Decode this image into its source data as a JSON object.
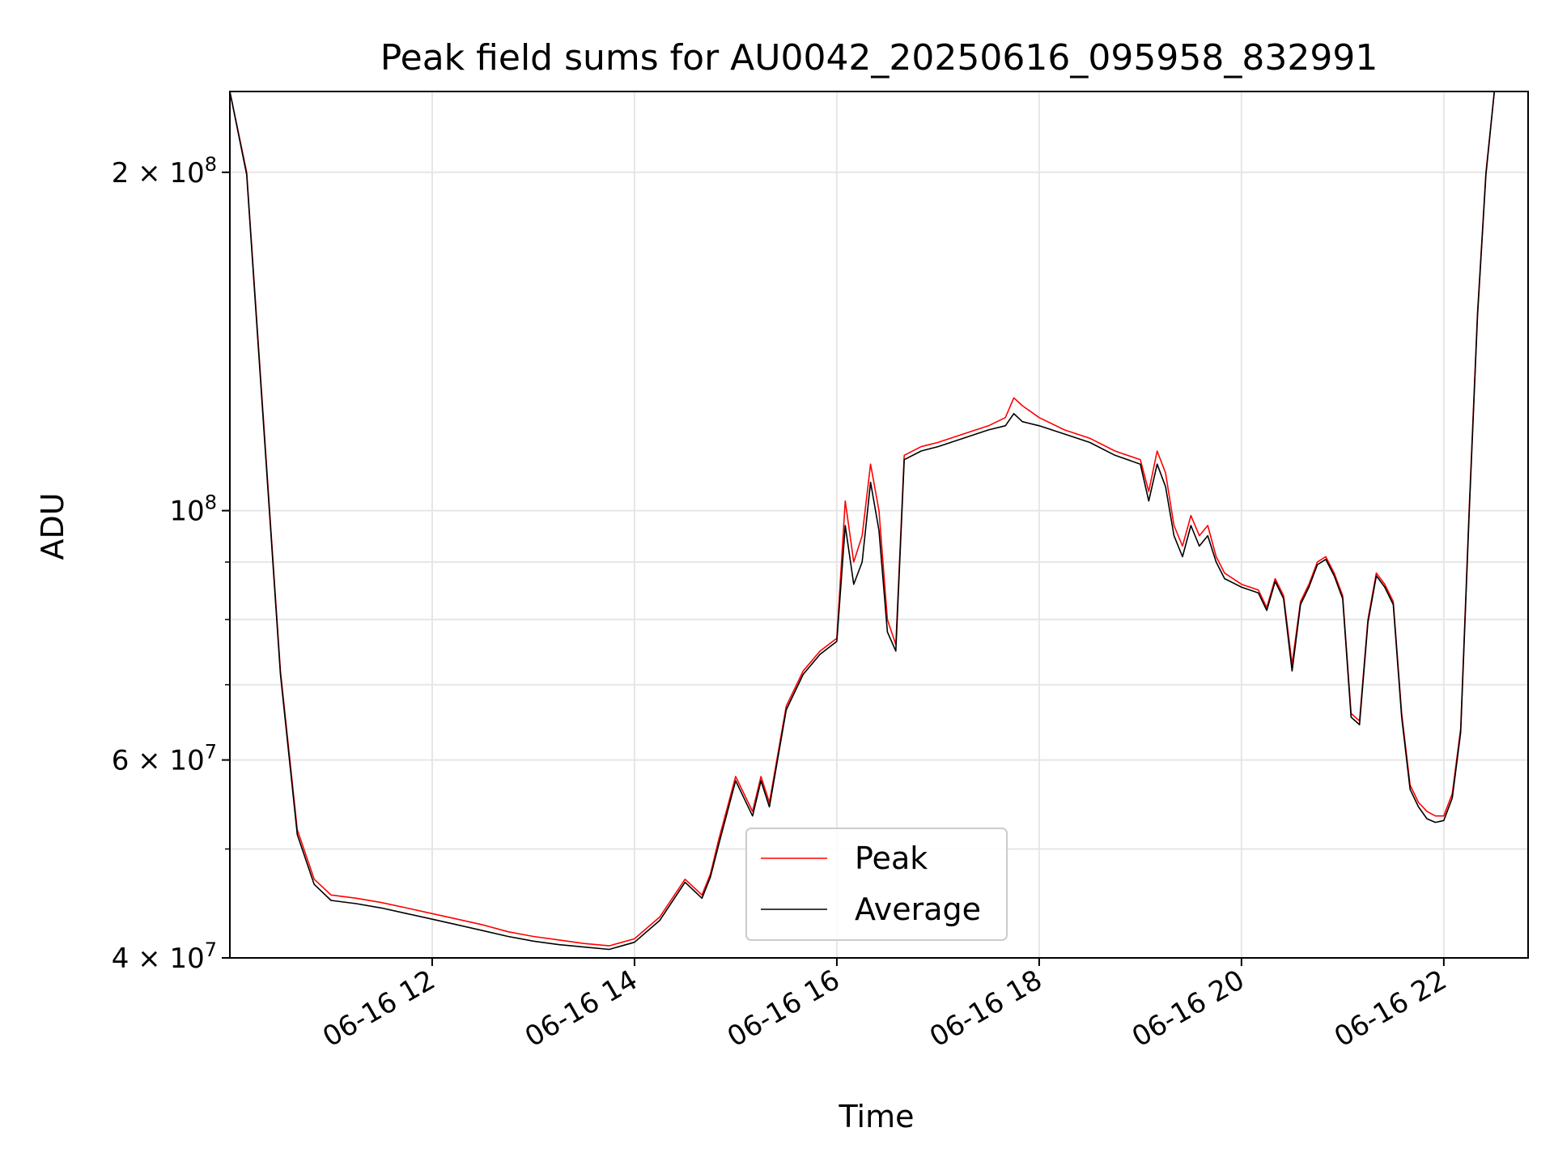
{
  "chart_data": {
    "type": "line",
    "title": "Peak field sums for AU0042_20250616_095958_832991",
    "xlabel": "Time",
    "ylabel": "ADU",
    "yscale": "log",
    "ylim": [
      40000000,
      236000000
    ],
    "xlim": [
      "2025-06-16 10:00",
      "2025-06-16 22:50"
    ],
    "grid": true,
    "legend_position": "lower center",
    "x_ticks": [
      "06-16 12",
      "06-16 14",
      "06-16 16",
      "06-16 18",
      "06-16 20",
      "06-16 22"
    ],
    "y_tick_labels": {
      "2e8": "2 × 10^8",
      "1e8": "10^8",
      "6e7": "6 × 10^7",
      "4e7": "4 × 10^7"
    },
    "colors": {
      "Peak": "#ff0000",
      "Average": "#000000"
    },
    "x": [
      "2025-06-16 10:00",
      "2025-06-16 10:10",
      "2025-06-16 10:20",
      "2025-06-16 10:30",
      "2025-06-16 10:40",
      "2025-06-16 10:50",
      "2025-06-16 11:00",
      "2025-06-16 11:15",
      "2025-06-16 11:30",
      "2025-06-16 11:45",
      "2025-06-16 12:00",
      "2025-06-16 12:15",
      "2025-06-16 12:30",
      "2025-06-16 12:45",
      "2025-06-16 13:00",
      "2025-06-16 13:15",
      "2025-06-16 13:30",
      "2025-06-16 13:45",
      "2025-06-16 14:00",
      "2025-06-16 14:15",
      "2025-06-16 14:30",
      "2025-06-16 14:40",
      "2025-06-16 14:45",
      "2025-06-16 14:50",
      "2025-06-16 15:00",
      "2025-06-16 15:10",
      "2025-06-16 15:15",
      "2025-06-16 15:20",
      "2025-06-16 15:30",
      "2025-06-16 15:40",
      "2025-06-16 15:50",
      "2025-06-16 16:00",
      "2025-06-16 16:05",
      "2025-06-16 16:10",
      "2025-06-16 16:15",
      "2025-06-16 16:20",
      "2025-06-16 16:25",
      "2025-06-16 16:30",
      "2025-06-16 16:35",
      "2025-06-16 16:40",
      "2025-06-16 16:50",
      "2025-06-16 17:00",
      "2025-06-16 17:15",
      "2025-06-16 17:30",
      "2025-06-16 17:40",
      "2025-06-16 17:45",
      "2025-06-16 17:50",
      "2025-06-16 18:00",
      "2025-06-16 18:15",
      "2025-06-16 18:30",
      "2025-06-16 18:45",
      "2025-06-16 19:00",
      "2025-06-16 19:05",
      "2025-06-16 19:10",
      "2025-06-16 19:15",
      "2025-06-16 19:20",
      "2025-06-16 19:25",
      "2025-06-16 19:30",
      "2025-06-16 19:35",
      "2025-06-16 19:40",
      "2025-06-16 19:45",
      "2025-06-16 19:50",
      "2025-06-16 20:00",
      "2025-06-16 20:10",
      "2025-06-16 20:15",
      "2025-06-16 20:20",
      "2025-06-16 20:25",
      "2025-06-16 20:30",
      "2025-06-16 20:35",
      "2025-06-16 20:40",
      "2025-06-16 20:45",
      "2025-06-16 20:50",
      "2025-06-16 20:55",
      "2025-06-16 21:00",
      "2025-06-16 21:05",
      "2025-06-16 21:10",
      "2025-06-16 21:15",
      "2025-06-16 21:20",
      "2025-06-16 21:25",
      "2025-06-16 21:30",
      "2025-06-16 21:35",
      "2025-06-16 21:40",
      "2025-06-16 21:45",
      "2025-06-16 21:50",
      "2025-06-16 21:55",
      "2025-06-16 22:00",
      "2025-06-16 22:05",
      "2025-06-16 22:10",
      "2025-06-16 22:15",
      "2025-06-16 22:20",
      "2025-06-16 22:25",
      "2025-06-16 22:30",
      "2025-06-16 22:35",
      "2025-06-16 22:40",
      "2025-06-16 22:50"
    ],
    "series": [
      {
        "name": "Peak",
        "values": [
          236000000,
          200000000,
          120000000,
          72000000,
          52000000,
          47000000,
          45500000,
          45200000,
          44800000,
          44300000,
          43800000,
          43300000,
          42800000,
          42200000,
          41800000,
          41500000,
          41200000,
          41000000,
          41600000,
          43500000,
          47000000,
          45500000,
          47500000,
          51000000,
          58000000,
          54000000,
          58000000,
          55000000,
          67000000,
          72000000,
          75000000,
          77000000,
          102000000,
          90000000,
          95000000,
          110000000,
          100000000,
          80000000,
          76000000,
          112000000,
          114000000,
          115000000,
          117000000,
          119000000,
          121000000,
          126000000,
          124000000,
          121000000,
          118000000,
          116000000,
          113000000,
          111000000,
          104000000,
          113000000,
          108000000,
          97000000,
          93000000,
          99000000,
          95000000,
          97000000,
          91000000,
          88000000,
          86000000,
          85000000,
          82000000,
          87000000,
          84000000,
          73000000,
          83000000,
          86000000,
          90000000,
          91000000,
          88000000,
          84000000,
          66000000,
          65000000,
          80000000,
          88000000,
          86000000,
          83000000,
          66000000,
          57000000,
          55000000,
          54000000,
          53500000,
          53500000,
          56000000,
          64000000,
          100000000,
          150000000,
          200000000,
          236000000,
          236000000,
          236000000,
          236000000
        ]
      },
      {
        "name": "Average",
        "values": [
          236000000,
          199000000,
          119000000,
          71500000,
          51500000,
          46500000,
          45000000,
          44700000,
          44300000,
          43800000,
          43300000,
          42800000,
          42300000,
          41800000,
          41400000,
          41100000,
          40900000,
          40700000,
          41300000,
          43200000,
          46700000,
          45200000,
          47200000,
          50500000,
          57500000,
          53500000,
          57500000,
          54500000,
          66500000,
          71500000,
          74500000,
          76500000,
          97000000,
          86000000,
          90000000,
          106000000,
          96000000,
          78000000,
          75000000,
          111000000,
          113000000,
          114000000,
          116000000,
          118000000,
          119000000,
          122000000,
          120000000,
          119000000,
          117000000,
          115000000,
          112000000,
          110000000,
          102000000,
          110000000,
          105000000,
          95000000,
          91000000,
          97000000,
          93000000,
          95000000,
          90000000,
          87000000,
          85500000,
          84500000,
          81500000,
          86500000,
          83500000,
          72000000,
          82500000,
          85500000,
          89500000,
          90500000,
          87500000,
          83500000,
          65500000,
          64500000,
          79500000,
          87500000,
          85500000,
          82500000,
          65500000,
          56500000,
          54500000,
          53200000,
          52800000,
          53000000,
          55500000,
          63500000,
          99000000,
          149000000,
          199000000,
          236000000,
          236000000,
          236000000,
          236000000
        ]
      }
    ]
  }
}
